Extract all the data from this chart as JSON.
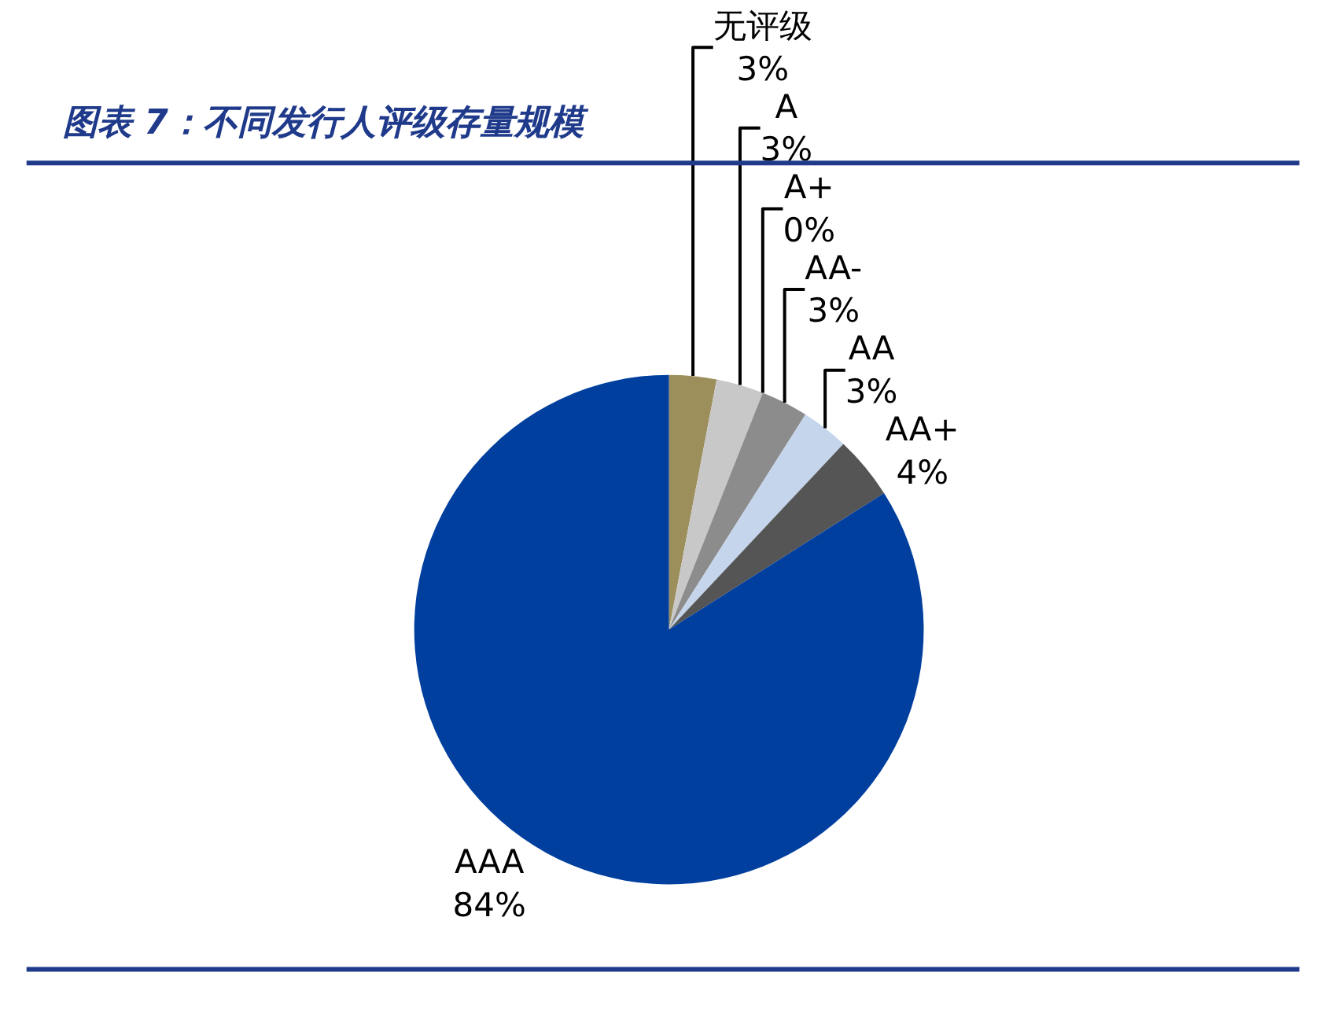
{
  "chart_data": {
    "type": "pie",
    "title": "图表 7：不同发行人评级存量规模",
    "categories": [
      "无评级",
      "A",
      "A+",
      "AA-",
      "AA",
      "AA+",
      "AAA"
    ],
    "values": [
      3,
      3,
      0,
      3,
      3,
      4,
      84
    ],
    "value_labels": [
      "3%",
      "3%",
      "0%",
      "3%",
      "3%",
      "4%",
      "84%"
    ],
    "colors": [
      "#9c8f5c",
      "#c8c8c8",
      "#4a72c4",
      "#8c8c8c",
      "#c5d5ec",
      "#555555",
      "#003f9e"
    ],
    "legend": false
  }
}
